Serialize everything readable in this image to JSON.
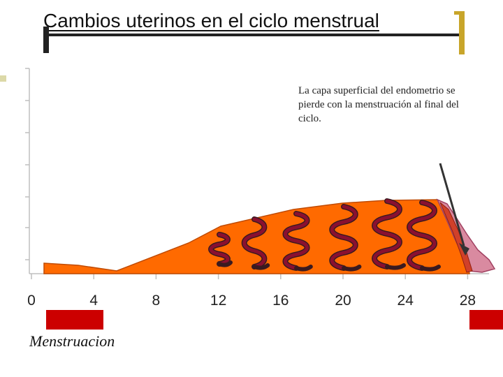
{
  "slide": {
    "title": "Cambios uterinos en el ciclo menstrual",
    "annotation": "La capa superficial del endometrio se pierde con la menstruación al final del ciclo.",
    "legend_label": "Menstruacion"
  },
  "colors": {
    "endometrium": "#ff6a00",
    "shed_layer": "#d98aa0",
    "gland": "#8a1030",
    "menstruation_box": "#cc0000",
    "accent_gold": "#c8a52a"
  },
  "chart_data": {
    "type": "area",
    "x_ticks": [
      "0",
      "4",
      "8",
      "12",
      "16",
      "20",
      "24",
      "28"
    ],
    "xlim": [
      0,
      28
    ],
    "series": [
      {
        "x": [
          1,
          3,
          5.5,
          10,
          12,
          17,
          22,
          26,
          26.5,
          27,
          27.5,
          28
        ],
        "y": [
          0.15,
          0.12,
          0.02,
          0.55,
          0.95,
          1.2,
          1.35,
          1.4,
          1.2,
          0.9,
          0.6,
          0.25
        ]
      }
    ],
    "menstruation_days": [
      [
        1,
        5
      ],
      [
        28,
        30
      ]
    ]
  }
}
